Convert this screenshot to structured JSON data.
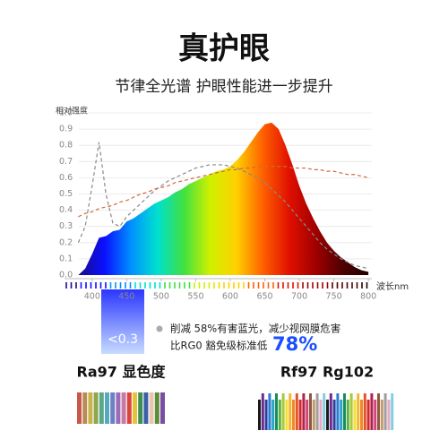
{
  "header": {
    "title": "真护眼",
    "subtitle": "节律全光谱 护眼性能进一步提升"
  },
  "chart_data": {
    "type": "area",
    "y_label": "相对强度",
    "x_label": "波长nm",
    "x": [
      380,
      390,
      400,
      410,
      420,
      430,
      440,
      450,
      460,
      470,
      480,
      490,
      500,
      510,
      520,
      530,
      540,
      550,
      560,
      570,
      580,
      590,
      600,
      610,
      620,
      630,
      640,
      650,
      660,
      670,
      680,
      690,
      700,
      710,
      720,
      730,
      740,
      750,
      760,
      770,
      780,
      790,
      800
    ],
    "series": [
      {
        "style": "area",
        "colors": [
          "#1a0a8c",
          "#0a10ff",
          "#0090ff",
          "#00e0d0",
          "#40e040",
          "#d0f000",
          "#ffd000",
          "#ff6000",
          "#e01000",
          "#a00000",
          "#500000",
          "#200000"
        ],
        "values": [
          0,
          0.04,
          0.13,
          0.23,
          0.24,
          0.27,
          0.28,
          0.33,
          0.35,
          0.38,
          0.41,
          0.44,
          0.46,
          0.48,
          0.51,
          0.53,
          0.56,
          0.58,
          0.6,
          0.62,
          0.64,
          0.65,
          0.67,
          0.71,
          0.76,
          0.82,
          0.88,
          0.93,
          0.94,
          0.9,
          0.8,
          0.68,
          0.55,
          0.44,
          0.35,
          0.27,
          0.2,
          0.15,
          0.11,
          0.08,
          0.05,
          0.03,
          0.02
        ]
      },
      {
        "style": "dashed",
        "color": "#8a8a8a",
        "values": [
          0.2,
          0.3,
          0.55,
          0.82,
          0.5,
          0.32,
          0.3,
          0.36,
          0.4,
          0.44,
          0.48,
          0.52,
          0.55,
          0.58,
          0.6,
          0.62,
          0.64,
          0.66,
          0.67,
          0.68,
          0.68,
          0.68,
          0.67,
          0.66,
          0.64,
          0.62,
          0.6,
          0.57,
          0.53,
          0.49,
          0.45,
          0.4,
          0.35,
          0.3,
          0.25,
          0.2,
          0.16,
          0.13,
          0.1,
          0.08,
          0.06,
          0.05,
          0.04
        ]
      },
      {
        "style": "dashed",
        "color": "#d2693c",
        "values": [
          0.36,
          0.38,
          0.39,
          0.41,
          0.42,
          0.43,
          0.45,
          0.46,
          0.48,
          0.5,
          0.51,
          0.53,
          0.54,
          0.55,
          0.57,
          0.58,
          0.59,
          0.6,
          0.61,
          0.62,
          0.63,
          0.64,
          0.65,
          0.65,
          0.66,
          0.66,
          0.67,
          0.67,
          0.67,
          0.67,
          0.67,
          0.66,
          0.66,
          0.66,
          0.65,
          0.65,
          0.64,
          0.64,
          0.63,
          0.62,
          0.62,
          0.61,
          0.6
        ]
      }
    ],
    "xlim": [
      360,
      805
    ],
    "ylim": [
      0,
      1
    ],
    "xticks": [
      400,
      450,
      500,
      550,
      600,
      650,
      700,
      750,
      800
    ],
    "yticks": [
      {
        "value": 0,
        "label": "0.0"
      },
      0.1,
      0.2,
      0.3,
      0.4,
      0.5,
      0.6,
      0.7,
      0.8,
      0.9,
      {
        "value": 1,
        "label": "1.0"
      }
    ],
    "box_label": "<0.3"
  },
  "callout": {
    "line1": "削减 58%有害蓝光，减少视网膜危害",
    "line2": "比RG0 豁免级标准低",
    "highlight": "78%"
  },
  "badges": {
    "left": "Ra97 显色度",
    "right": "Rf97 Rg102"
  }
}
